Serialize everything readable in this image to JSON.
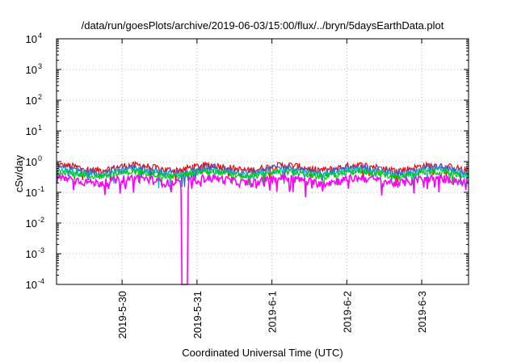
{
  "chart_data": {
    "type": "line",
    "title": "/data/run/goesPlots/archive/2019-06-03/15:00/flux/../bryn/5daysEarthData.plot",
    "xlabel": "Coordinated Universal Time (UTC)",
    "ylabel": "cSv/day",
    "y_scale": "log",
    "ylim": [
      0.0001,
      10000
    ],
    "y_ticks": [
      {
        "base": "10",
        "exp": "4"
      },
      {
        "base": "10",
        "exp": "3"
      },
      {
        "base": "10",
        "exp": "2"
      },
      {
        "base": "10",
        "exp": "1"
      },
      {
        "base": "10",
        "exp": "0"
      },
      {
        "base": "10",
        "exp": "-1"
      },
      {
        "base": "10",
        "exp": "-2"
      },
      {
        "base": "10",
        "exp": "-3"
      },
      {
        "base": "10",
        "exp": "-4"
      }
    ],
    "xlim": [
      "2019-05-29 03:00",
      "2019-06-03 15:00"
    ],
    "x_ticks": [
      {
        "label": "2019-5-30",
        "date": "2019-05-30"
      },
      {
        "label": "2019-5-31",
        "date": "2019-05-31"
      },
      {
        "label": "2019-6-1",
        "date": "2019-06-01"
      },
      {
        "label": "2019-6-2",
        "date": "2019-06-02"
      },
      {
        "label": "2019-6-3",
        "date": "2019-06-03"
      }
    ],
    "grid": true,
    "legend": "none",
    "series": [
      {
        "color": "#ff0000",
        "level": 0.65,
        "noise": 0.09
      },
      {
        "color": "#3a5fcd",
        "level": 0.55,
        "noise": 0.09
      },
      {
        "color": "#00bfbf",
        "level": 0.45,
        "noise": 0.08
      },
      {
        "color": "#00cc00",
        "level": 0.4,
        "noise": 0.07
      },
      {
        "color": "#ff00ff",
        "level": 0.25,
        "noise": 0.1
      }
    ],
    "dropout": {
      "series_color": "#ff00ff",
      "from": "2019-05-30 19:00",
      "to": "2019-05-30 21:00",
      "min_value": 0.0001
    }
  }
}
